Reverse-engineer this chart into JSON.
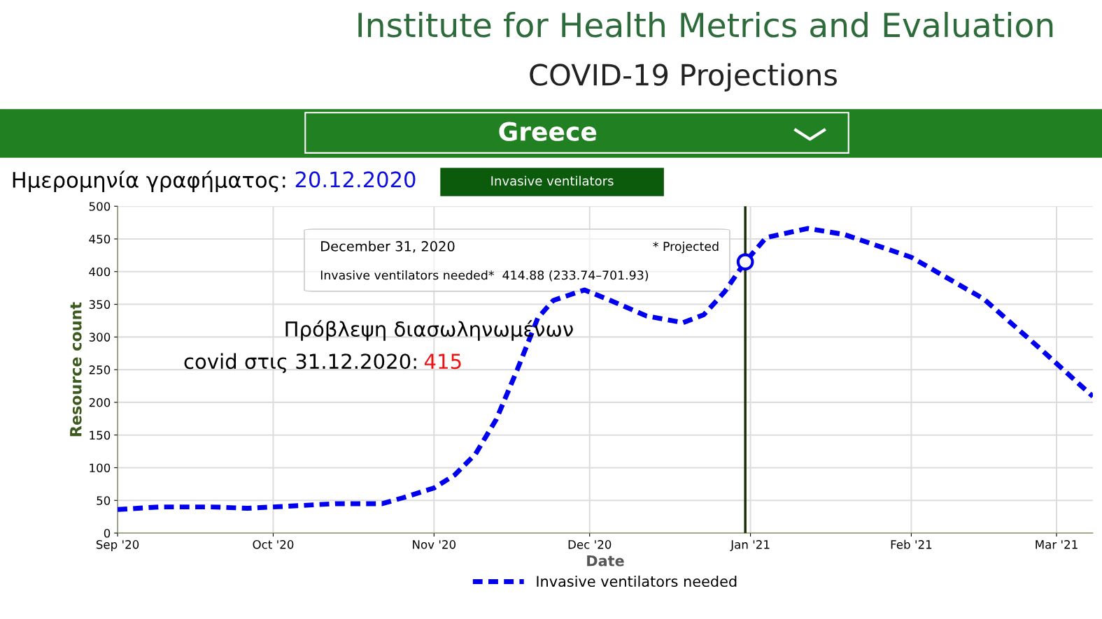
{
  "chart_data": {
    "type": "line",
    "title": "Institute for Health Metrics and Evaluation",
    "subtitle": "COVID-19 Projections",
    "xlabel": "Date",
    "ylabel": "Resource count",
    "annotations": [
      "Greece",
      "Ημερομηνία γραφήματος:",
      "20.12.2020",
      "Invasive ventilators",
      "December 31, 2020",
      "* Projected",
      "Invasive ventilators needed*  414.88 (233.74–701.93)",
      "Πρόβλεψη διασωληνωμένων",
      "covid στις 31.12.2020:",
      "415"
    ],
    "series": [
      {
        "name": "Invasive ventilators needed",
        "color": "#0000ee",
        "line_style": "dashed",
        "marker": "none",
        "x": [
          "2020-09-01",
          "2020-09-09",
          "2020-09-19",
          "2020-09-26",
          "2020-10-06",
          "2020-10-13",
          "2020-10-22",
          "2020-10-26",
          "2020-11-01",
          "2020-11-05",
          "2020-11-09",
          "2020-11-13",
          "2020-11-17",
          "2020-11-21",
          "2020-11-24",
          "2020-11-30",
          "2020-12-05",
          "2020-12-12",
          "2020-12-19",
          "2020-12-23",
          "2020-12-27",
          "2020-12-31",
          "2021-01-04",
          "2021-01-12",
          "2021-01-19",
          "2021-02-01",
          "2021-02-15",
          "2021-02-26",
          "2021-03-08"
        ],
        "values": [
          36,
          40,
          40,
          38,
          42,
          45,
          45,
          54,
          69,
          89,
          121,
          174,
          249,
          329,
          356,
          372,
          356,
          332,
          322,
          334,
          369,
          414.88,
          452,
          466,
          457,
          422,
          358,
          281,
          209
        ]
      },
      {
        "type": "scatter",
        "color": "#0000ee",
        "marker": "circle",
        "x": [
          "2020-12-31"
        ],
        "values": [
          414.88
        ]
      }
    ],
    "xlim": [
      "2020-09-01",
      "2021-03-08"
    ],
    "xticks": [
      {
        "value": "2020-09-01",
        "label": "Sep '20"
      },
      {
        "value": "2020-10-01",
        "label": "Oct '20"
      },
      {
        "value": "2020-11-01",
        "label": "Nov '20"
      },
      {
        "value": "2020-12-01",
        "label": "Dec '20"
      },
      {
        "value": "2021-01-01",
        "label": "Jan '21"
      },
      {
        "value": "2021-02-01",
        "label": "Feb '21"
      },
      {
        "value": "2021-03-01",
        "label": "Mar '21"
      }
    ],
    "ylim": [
      0,
      500
    ],
    "yticks": [
      0,
      50,
      100,
      150,
      200,
      250,
      300,
      350,
      400,
      450,
      500
    ],
    "ref_lines": [
      {
        "axis": "x",
        "value": "2020-12-31",
        "color": "#1a2e05"
      }
    ],
    "grid": true,
    "legend": "bottom"
  }
}
